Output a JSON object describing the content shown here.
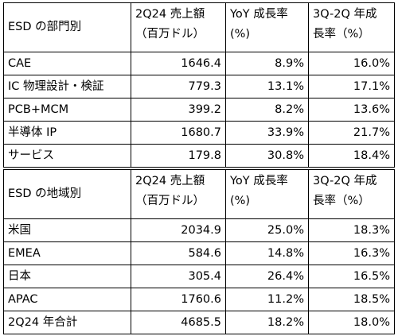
{
  "segment_table": {
    "header": {
      "label": "ESD の部門別",
      "revenue_line1": "2Q24 売上額",
      "revenue_line2": "（百万ドル）",
      "yoy_line1": "YoY 成長率",
      "yoy_line2": "(%)",
      "qoq_line1": "3Q-2Q 年成",
      "qoq_line2": "長率（%）"
    },
    "rows": [
      {
        "name": "CAE",
        "revenue": "1646.4",
        "yoy": "8.9%",
        "qoq": "16.0%"
      },
      {
        "name": "IC 物理設計・検証",
        "revenue": "779.3",
        "yoy": "13.1%",
        "qoq": "17.1%"
      },
      {
        "name": "PCB+MCM",
        "revenue": "399.2",
        "yoy": "8.2%",
        "qoq": "13.6%"
      },
      {
        "name": "半導体 IP",
        "revenue": "1680.7",
        "yoy": "33.9%",
        "qoq": "21.7%"
      },
      {
        "name": "サービス",
        "revenue": "179.8",
        "yoy": "30.8%",
        "qoq": "18.4%"
      }
    ]
  },
  "region_table": {
    "header": {
      "label": "ESD の地域別",
      "revenue_line1": "2Q24 売上額",
      "revenue_line2": "（百万ドル）",
      "yoy_line1": "YoY 成長率",
      "yoy_line2": "(%)",
      "qoq_line1": "3Q-2Q 年成",
      "qoq_line2": "長率（%）"
    },
    "rows": [
      {
        "name": "米国",
        "revenue": "2034.9",
        "yoy": "25.0%",
        "qoq": "18.3%"
      },
      {
        "name": "EMEA",
        "revenue": "584.6",
        "yoy": "14.8%",
        "qoq": "16.3%"
      },
      {
        "name": "日本",
        "revenue": "305.4",
        "yoy": "26.4%",
        "qoq": "16.5%"
      },
      {
        "name": "APAC",
        "revenue": "1760.6",
        "yoy": "11.2%",
        "qoq": "18.5%"
      },
      {
        "name": "2Q24 年合計",
        "revenue": "4685.5",
        "yoy": "18.2%",
        "qoq": "18.0%"
      }
    ]
  }
}
